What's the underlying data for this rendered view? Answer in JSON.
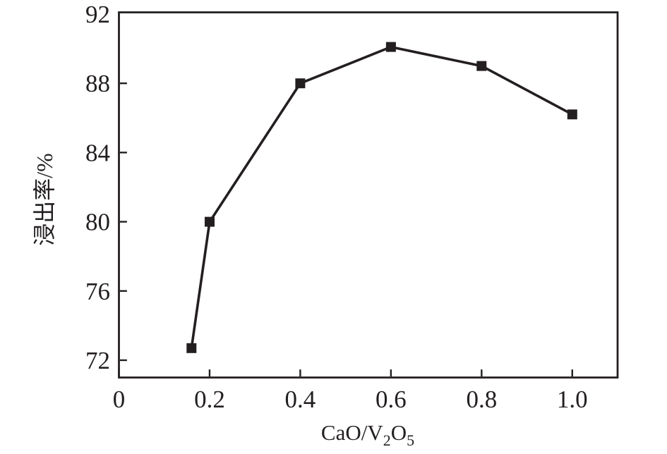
{
  "figure": {
    "background_color": "#ffffff",
    "axis_color": "#231f20",
    "text_color": "#231f20"
  },
  "chart_data": {
    "type": "line",
    "title": "",
    "xlabel_plain": "CaO/V2O5",
    "xlabel_parts": [
      {
        "text": "CaO/V",
        "sub": false
      },
      {
        "text": "2",
        "sub": true
      },
      {
        "text": "O",
        "sub": false
      },
      {
        "text": "5",
        "sub": true
      }
    ],
    "ylabel": "浸出率/%",
    "series": [
      {
        "name": "浸出率",
        "x": [
          0.16,
          0.2,
          0.4,
          0.6,
          0.8,
          1.0
        ],
        "y": [
          72.7,
          80.0,
          88.0,
          90.1,
          89.0,
          86.2
        ],
        "line_color": "#231f20",
        "marker": "square",
        "marker_size": 14,
        "marker_color": "#231f20"
      }
    ],
    "xlim": [
      0,
      1.1
    ],
    "ylim": [
      71,
      92.1
    ],
    "xticks": [
      0,
      0.2,
      0.4,
      0.6,
      0.8,
      1.0
    ],
    "xtick_labels": [
      "0",
      "0.2",
      "0.4",
      "0.6",
      "0.8",
      "1.0"
    ],
    "yticks": [
      72,
      76,
      80,
      84,
      88,
      92
    ],
    "ytick_labels": [
      "72",
      "76",
      "80",
      "84",
      "88",
      "92"
    ],
    "grid": false,
    "legend": null
  }
}
